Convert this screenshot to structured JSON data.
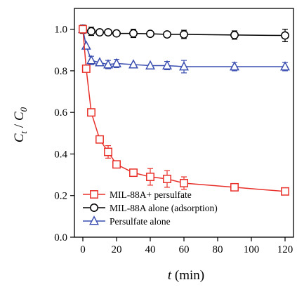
{
  "chart_data": {
    "type": "line",
    "x_axis": {
      "var": "t",
      "unit": " (min)",
      "range": [
        -5,
        125
      ],
      "ticks": [
        0,
        20,
        40,
        60,
        80,
        100,
        120
      ]
    },
    "y_axis": {
      "var": "C",
      "sub_t": "t",
      "sep": " / ",
      "sub_0": "0",
      "range": [
        0,
        1.1
      ],
      "ticks": [
        0.0,
        0.2,
        0.4,
        0.6,
        0.8,
        1.0
      ],
      "tick_labels": [
        "0.0",
        "0.2",
        "0.4",
        "0.6",
        "0.8",
        "1.0"
      ]
    },
    "grid": false,
    "legend_position": "bottom-left",
    "series": [
      {
        "name": "MIL-88A+ persulfate",
        "color": "#e8302a",
        "marker": "square",
        "x": [
          0,
          2,
          5,
          10,
          15,
          20,
          30,
          40,
          50,
          60,
          90,
          120
        ],
        "y": [
          1.0,
          0.81,
          0.6,
          0.47,
          0.41,
          0.35,
          0.31,
          0.29,
          0.28,
          0.26,
          0.24,
          0.22
        ],
        "err": [
          0.01,
          0.01,
          0.01,
          0.01,
          0.03,
          0.01,
          0.01,
          0.04,
          0.04,
          0.03,
          0.01,
          0.01
        ]
      },
      {
        "name": "MIL-88A alone (adsorption)",
        "color": "#000000",
        "marker": "circle",
        "x": [
          0,
          5,
          10,
          15,
          20,
          30,
          40,
          50,
          60,
          90,
          120
        ],
        "y": [
          1.0,
          0.99,
          0.985,
          0.985,
          0.98,
          0.98,
          0.978,
          0.975,
          0.975,
          0.972,
          0.97
        ],
        "err": [
          0.02,
          0.02,
          0.01,
          0.01,
          0.01,
          0.02,
          0.01,
          0.01,
          0.02,
          0.02,
          0.03
        ]
      },
      {
        "name": "Persulfate alone",
        "color": "#3a4eb0",
        "marker": "triangle",
        "x": [
          0,
          2,
          5,
          10,
          15,
          20,
          30,
          40,
          50,
          60,
          90,
          120
        ],
        "y": [
          1.0,
          0.92,
          0.85,
          0.84,
          0.83,
          0.835,
          0.83,
          0.825,
          0.825,
          0.82,
          0.82,
          0.82
        ],
        "err": [
          0.01,
          0.01,
          0.02,
          0.01,
          0.02,
          0.02,
          0.01,
          0.01,
          0.02,
          0.03,
          0.02,
          0.02
        ]
      }
    ]
  }
}
